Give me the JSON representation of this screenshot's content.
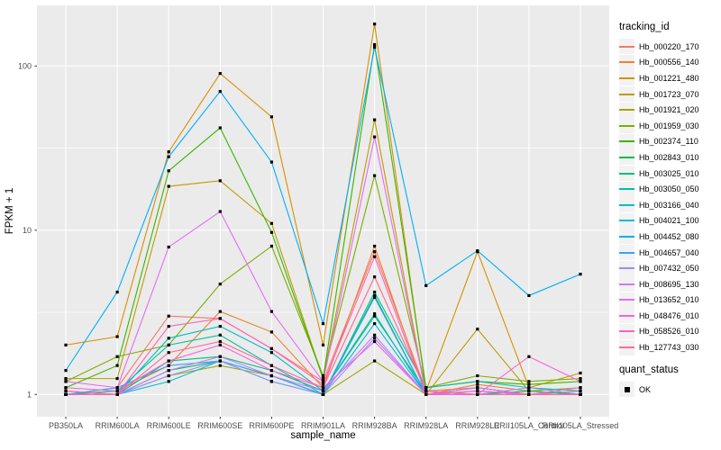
{
  "figure": {
    "background": "#FFFFFF",
    "panel_background": "#EBEBEB",
    "grid_color": "#FFFFFF",
    "tick_text_color": "#4D4D4D",
    "tick_mark_color": "#333333",
    "point_color": "#000000"
  },
  "axes": {
    "x_title": "sample_name",
    "y_title": "FPKM + 1",
    "y_scale": "log10",
    "y_tick_labels": [
      "1",
      "10",
      "100"
    ],
    "y_tick_values": [
      1,
      10,
      100
    ],
    "y_minor_values": [
      3.1623,
      31.623
    ]
  },
  "legend": {
    "tracking_title": "tracking_id",
    "quant_title": "quant_status",
    "quant_items": [
      {
        "label": "OK",
        "shape": "black-square"
      }
    ]
  },
  "chart_data": {
    "type": "line",
    "title": "",
    "xlabel": "sample_name",
    "ylabel": "FPKM + 1",
    "y_scale": "log10",
    "ylim": [
      0.73,
      235
    ],
    "grid": true,
    "legend_position": "right",
    "point_shape": "small black square (quant_status OK)",
    "categories": [
      "PB350LA",
      "RRIM600LA",
      "RRIM600LE",
      "RRIM600SE",
      "RRIM600PE",
      "RRIM901LA",
      "RRIM928BA",
      "RRIM928LA",
      "RRIM928LE",
      "RRII105LA_Control",
      "RRII105LA_Stressed"
    ],
    "series": [
      {
        "name": "Hb_000220_170",
        "color": "#F8766D",
        "values": [
          1.0,
          1.1,
          3.0,
          2.9,
          1.9,
          1.2,
          7.4,
          1.05,
          1.1,
          1.0,
          1.05
        ]
      },
      {
        "name": "Hb_000556_140",
        "color": "#EA8331",
        "values": [
          1.0,
          1.05,
          1.5,
          3.2,
          2.4,
          1.1,
          8.0,
          1.0,
          1.15,
          1.05,
          1.0
        ]
      },
      {
        "name": "Hb_001221_480",
        "color": "#D89000",
        "values": [
          2.0,
          2.25,
          30,
          90,
          49,
          2.0,
          180,
          1.05,
          7.4,
          1.1,
          1.35
        ]
      },
      {
        "name": "Hb_001723_070",
        "color": "#C09B00",
        "values": [
          1.25,
          1.25,
          18.5,
          20,
          11,
          1.25,
          47,
          1.0,
          2.5,
          1.05,
          1.1
        ]
      },
      {
        "name": "Hb_001921_020",
        "color": "#A3A500",
        "values": [
          1.0,
          1.0,
          1.3,
          1.5,
          1.3,
          1.0,
          1.6,
          1.0,
          1.0,
          1.05,
          1.0
        ]
      },
      {
        "name": "Hb_001959_030",
        "color": "#7CAE00",
        "values": [
          1.2,
          1.7,
          2.0,
          4.7,
          8.0,
          1.3,
          21.5,
          1.1,
          1.3,
          1.2,
          1.25
        ]
      },
      {
        "name": "Hb_002374_110",
        "color": "#39B600",
        "values": [
          1.1,
          1.5,
          23,
          42,
          9.7,
          1.25,
          135,
          1.1,
          1.2,
          1.15,
          1.2
        ]
      },
      {
        "name": "Hb_002843_010",
        "color": "#00BB4E",
        "values": [
          1.0,
          1.0,
          1.4,
          1.6,
          1.3,
          1.0,
          4.0,
          1.0,
          1.1,
          1.0,
          1.0
        ]
      },
      {
        "name": "Hb_003025_010",
        "color": "#00BF7D",
        "values": [
          1.05,
          1.0,
          1.6,
          1.7,
          1.4,
          1.05,
          3.0,
          1.05,
          1.0,
          1.05,
          1.0
        ]
      },
      {
        "name": "Hb_003050_050",
        "color": "#00C1A3",
        "values": [
          1.0,
          1.05,
          2.0,
          2.3,
          1.5,
          1.0,
          4.2,
          1.1,
          1.2,
          1.1,
          1.05
        ]
      },
      {
        "name": "Hb_003166_040",
        "color": "#00BFC4",
        "values": [
          1.0,
          1.0,
          2.2,
          2.6,
          1.8,
          1.05,
          3.1,
          1.0,
          1.05,
          1.0,
          1.0
        ]
      },
      {
        "name": "Hb_004021_100",
        "color": "#00BAE0",
        "values": [
          1.0,
          1.0,
          1.2,
          1.6,
          1.2,
          1.0,
          2.7,
          1.0,
          1.0,
          1.0,
          1.0
        ]
      },
      {
        "name": "Hb_004452_080",
        "color": "#00B0F6",
        "values": [
          1.4,
          4.2,
          28,
          70,
          26,
          2.7,
          130,
          4.6,
          7.5,
          4.0,
          5.4
        ]
      },
      {
        "name": "Hb_004657_040",
        "color": "#35A2FF",
        "values": [
          1.0,
          1.1,
          1.5,
          1.6,
          1.3,
          1.0,
          3.9,
          1.0,
          1.1,
          1.0,
          1.0
        ]
      },
      {
        "name": "Hb_007432_050",
        "color": "#9590FF",
        "values": [
          1.0,
          1.0,
          1.3,
          1.6,
          1.2,
          1.0,
          2.2,
          1.0,
          1.0,
          1.1,
          1.0
        ]
      },
      {
        "name": "Hb_008695_130",
        "color": "#C77CFF",
        "values": [
          1.0,
          1.0,
          1.4,
          1.7,
          1.3,
          1.05,
          2.3,
          1.0,
          1.05,
          1.0,
          1.1
        ]
      },
      {
        "name": "Hb_013652_010",
        "color": "#E76BF3",
        "values": [
          1.2,
          1.1,
          7.9,
          13,
          3.2,
          1.2,
          37,
          1.0,
          1.1,
          1.0,
          1.0
        ]
      },
      {
        "name": "Hb_048476_010",
        "color": "#FA62DB",
        "values": [
          1.1,
          1.05,
          1.6,
          2.0,
          1.4,
          1.1,
          2.1,
          1.0,
          1.0,
          1.7,
          1.2
        ]
      },
      {
        "name": "Hb_058526_010",
        "color": "#FF62BC",
        "values": [
          1.0,
          1.0,
          2.6,
          2.9,
          1.9,
          1.15,
          6.9,
          1.0,
          1.05,
          1.0,
          1.0
        ]
      },
      {
        "name": "Hb_127743_030",
        "color": "#FF6A98",
        "values": [
          1.05,
          1.0,
          1.8,
          2.1,
          1.5,
          1.1,
          5.2,
          1.05,
          1.0,
          1.0,
          1.0
        ]
      }
    ]
  }
}
